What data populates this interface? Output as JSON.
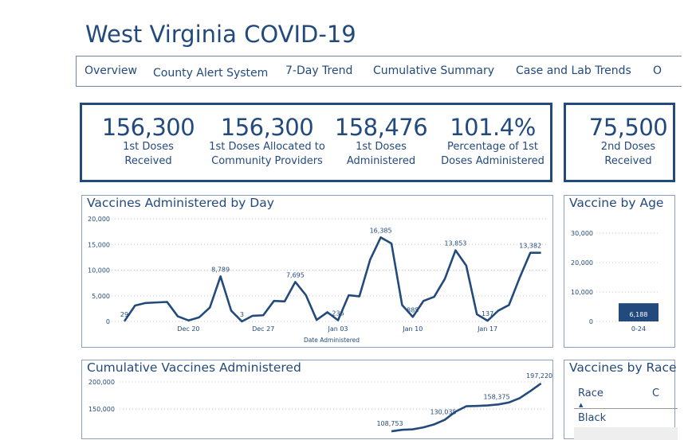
{
  "title": "West Virginia COVID-19",
  "nav": [
    "Overview",
    "County Alert System",
    "7-Day Trend",
    "Cumulative Summary",
    "Case and Lab Trends",
    "O"
  ],
  "kpis": [
    {
      "value": "156,300",
      "label": "1st Doses Received"
    },
    {
      "value": "156,300",
      "label": "1st Doses Allocated to Community Providers"
    },
    {
      "value": "158,476",
      "label": "1st Doses Administered"
    },
    {
      "value": "101.4%",
      "label": "Percentage of 1st Doses Administered"
    }
  ],
  "kpi2": {
    "value": "75,500",
    "label": "2nd Doses Received"
  },
  "colors": {
    "primary": "#234a7c",
    "grid": "#c8c8c8"
  },
  "chart_data": [
    {
      "type": "line",
      "title": "Vaccines Administered by Day",
      "xlabel": "Date Administered",
      "ylabel": "",
      "ylim": [
        0,
        20000
      ],
      "yticks": [
        "0",
        "5,000",
        "10,000",
        "15,000",
        "20,000"
      ],
      "xticks": [
        "Dec 20",
        "Dec 27",
        "Jan 03",
        "Jan 10",
        "Jan 17"
      ],
      "x": [
        "Dec 14",
        "Dec 15",
        "Dec 16",
        "Dec 17",
        "Dec 18",
        "Dec 19",
        "Dec 20",
        "Dec 21",
        "Dec 22",
        "Dec 23",
        "Dec 24",
        "Dec 25",
        "Dec 26",
        "Dec 27",
        "Dec 28",
        "Dec 29",
        "Dec 30",
        "Dec 31",
        "Jan 01",
        "Jan 02",
        "Jan 03",
        "Jan 04",
        "Jan 05",
        "Jan 06",
        "Jan 07",
        "Jan 08",
        "Jan 09",
        "Jan 10",
        "Jan 11",
        "Jan 12",
        "Jan 13",
        "Jan 14",
        "Jan 15",
        "Jan 16",
        "Jan 17",
        "Jan 18",
        "Jan 19",
        "Jan 20",
        "Jan 21",
        "Jan 22"
      ],
      "values": [
        29,
        3100,
        3600,
        3700,
        3800,
        1000,
        200,
        800,
        2700,
        8789,
        2100,
        3,
        1100,
        1200,
        4000,
        3900,
        7695,
        5100,
        300,
        1800,
        236,
        5100,
        4900,
        12000,
        16385,
        15200,
        3200,
        885,
        4000,
        4800,
        8300,
        13853,
        10900,
        1400,
        137,
        2100,
        3200,
        8500,
        13382,
        13382
      ],
      "data_labels": [
        {
          "x": "Dec 14",
          "text": "29"
        },
        {
          "x": "Dec 23",
          "text": "8,789"
        },
        {
          "x": "Dec 25",
          "text": "3"
        },
        {
          "x": "Dec 30",
          "text": "7,695"
        },
        {
          "x": "Jan 03",
          "text": "236"
        },
        {
          "x": "Jan 07",
          "text": "16,385"
        },
        {
          "x": "Jan 10",
          "text": "885"
        },
        {
          "x": "Jan 14",
          "text": "13,853"
        },
        {
          "x": "Jan 17",
          "text": "137"
        },
        {
          "x": "Jan 21",
          "text": "13,382"
        }
      ],
      "grid": true
    },
    {
      "type": "bar",
      "title": "Vaccine by Age",
      "categories": [
        "0-24"
      ],
      "values": [
        6188
      ],
      "data_labels": [
        "6,188"
      ],
      "yticks": [
        "0",
        "10,000",
        "20,000",
        "30,000"
      ],
      "ylim": [
        0,
        30000
      ],
      "grid": true
    },
    {
      "type": "line",
      "title": "Cumulative Vaccines Administered",
      "yticks": [
        "150,000",
        "200,000"
      ],
      "x": [
        "Jan 08",
        "Jan 09",
        "Jan 10",
        "Jan 11",
        "Jan 12",
        "Jan 13",
        "Jan 14",
        "Jan 15",
        "Jan 16",
        "Jan 17",
        "Jan 18",
        "Jan 19",
        "Jan 20",
        "Jan 21",
        "Jan 22"
      ],
      "values": [
        108753,
        111500,
        112400,
        116000,
        121500,
        130035,
        145000,
        155000,
        155600,
        156500,
        158375,
        162000,
        170000,
        183000,
        197220
      ],
      "data_labels": [
        {
          "x": "Jan 08",
          "text": "108,753"
        },
        {
          "x": "Jan 13",
          "text": "130,035"
        },
        {
          "x": "Jan 18",
          "text": "158,375"
        },
        {
          "x": "Jan 22",
          "text": "197,220"
        }
      ],
      "grid": true
    }
  ],
  "race_table": {
    "title": "Vaccines by Race",
    "columns": [
      "Race",
      "C"
    ],
    "rows": [
      "Black"
    ]
  }
}
